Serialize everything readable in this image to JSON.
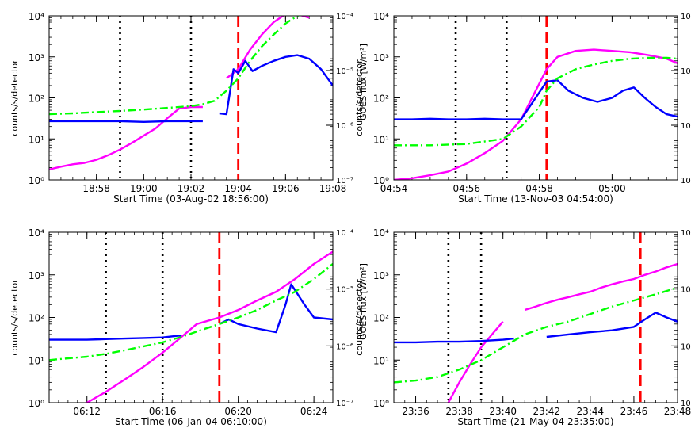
{
  "chart_data": [
    {
      "type": "line",
      "xlabel": "Start Time (03-Aug-02 18:56:00)",
      "ylabel": "counts/s/detector",
      "ylabel_right": "GOES flux [W/m²]",
      "x_ticks": [
        "18:58",
        "19:00",
        "19:02",
        "19:04",
        "19:06",
        "19:08"
      ],
      "xlim_minutes": [
        0,
        12
      ],
      "y_ticks": [
        "10⁰",
        "10¹",
        "10²",
        "10³",
        "10⁴"
      ],
      "y_ticks_right": [
        "10⁻⁷",
        "10⁻⁶",
        "10⁻⁵",
        "10⁻⁴"
      ],
      "ylim": [
        1,
        10000
      ],
      "scale": "log",
      "series": [
        {
          "color": "#ff00ff",
          "style": "solid",
          "x": [
            0,
            0.5,
            1,
            1.5,
            2,
            2.5,
            3,
            3.5,
            4,
            4.5,
            5,
            5.5,
            6,
            6.5,
            7,
            7.5,
            8,
            8.5,
            9,
            9.5,
            10,
            10.5,
            11,
            11.5,
            12
          ],
          "values": [
            1.8,
            2.1,
            2.4,
            2.6,
            3.1,
            4.0,
            5.5,
            8,
            12,
            18,
            32,
            55,
            60,
            60,
            null,
            300,
            500,
            1500,
            3500,
            7000,
            11000,
            11000,
            9000,
            null,
            null
          ]
        },
        {
          "color": "#0000ff",
          "style": "solid",
          "x": [
            0,
            1,
            2,
            3,
            4,
            5,
            6,
            6.5,
            7,
            7.2,
            7.5,
            7.8,
            8,
            8.3,
            8.6,
            9,
            9.5,
            10,
            10.5,
            11,
            11.5,
            12
          ],
          "values": [
            27,
            27,
            27,
            27,
            26,
            27,
            27,
            27,
            null,
            42,
            40,
            500,
            400,
            800,
            450,
            600,
            800,
            1000,
            1100,
            900,
            500,
            200
          ]
        },
        {
          "color": "#00ff00",
          "style": "dash-dot",
          "x": [
            0,
            1,
            2,
            3,
            4,
            5,
            6,
            6.5,
            7,
            7.5,
            8,
            8.5,
            9,
            9.5,
            10,
            10.5,
            11,
            11.5,
            12
          ],
          "values": [
            40,
            42,
            45,
            48,
            52,
            57,
            63,
            70,
            85,
            150,
            300,
            800,
            1800,
            3500,
            6500,
            10000,
            14000,
            18000,
            20000
          ]
        }
      ],
      "vlines": [
        {
          "x": 3,
          "style": "dotted",
          "color": "#000000"
        },
        {
          "x": 6,
          "style": "dotted",
          "color": "#000000"
        },
        {
          "x": 8,
          "style": "dashed",
          "color": "#ff0000"
        }
      ]
    },
    {
      "type": "line",
      "xlabel": "Start Time (13-Nov-03 04:54:00)",
      "ylabel": "counts/s/detector",
      "ylabel_right": "",
      "x_ticks": [
        "04:54",
        "04:56",
        "04:58",
        "05:00"
      ],
      "xlim_minutes": [
        0,
        7.8
      ],
      "y_ticks": [
        "10⁰",
        "10¹",
        "10²",
        "10³",
        "10⁴"
      ],
      "y_ticks_right": [
        "10⁻⁷",
        "10⁻⁶",
        "10⁻⁵",
        "10⁻⁴"
      ],
      "ylim": [
        1,
        10000
      ],
      "scale": "log",
      "series": [
        {
          "color": "#ff00ff",
          "style": "solid",
          "x": [
            0,
            0.5,
            1,
            1.5,
            2,
            2.5,
            3,
            3.5,
            4.2,
            4.5,
            5,
            5.5,
            6,
            6.5,
            7,
            7.5,
            7.8
          ],
          "values": [
            1.0,
            1.1,
            1.3,
            1.6,
            2.5,
            4.5,
            9,
            30,
            500,
            1000,
            1400,
            1500,
            1400,
            1300,
            1100,
            900,
            700
          ]
        },
        {
          "color": "#0000ff",
          "style": "solid",
          "x": [
            0,
            0.5,
            1,
            1.5,
            2,
            2.5,
            3,
            3.5,
            4.2,
            4.5,
            4.8,
            5.2,
            5.6,
            6,
            6.3,
            6.6,
            6.9,
            7.2,
            7.5,
            7.8
          ],
          "values": [
            30,
            30,
            31,
            30,
            30,
            31,
            30,
            30,
            250,
            270,
            150,
            100,
            80,
            100,
            150,
            180,
            100,
            60,
            40,
            35
          ]
        },
        {
          "color": "#00ff00",
          "style": "dash-dot",
          "x": [
            0,
            1,
            2,
            3,
            3.5,
            4,
            4.2,
            4.5,
            5,
            5.5,
            6,
            6.5,
            7,
            7.5,
            7.8
          ],
          "values": [
            7,
            7,
            7.5,
            10,
            20,
            60,
            150,
            300,
            500,
            650,
            800,
            900,
            950,
            950,
            900
          ]
        }
      ],
      "vlines": [
        {
          "x": 1.7,
          "style": "dotted",
          "color": "#000000"
        },
        {
          "x": 3.1,
          "style": "dotted",
          "color": "#000000"
        },
        {
          "x": 4.2,
          "style": "dashed",
          "color": "#ff0000"
        }
      ]
    },
    {
      "type": "line",
      "xlabel": "Start Time (06-Jan-04 06:10:00)",
      "ylabel": "counts/s/detector",
      "ylabel_right": "GOES flux [W/m²]",
      "x_ticks": [
        "06:12",
        "06:16",
        "06:20",
        "06:24"
      ],
      "xlim_minutes": [
        0,
        15
      ],
      "y_ticks": [
        "10⁰",
        "10¹",
        "10²",
        "10³",
        "10⁴"
      ],
      "y_ticks_right": [
        "10⁻⁷",
        "10⁻⁶",
        "10⁻⁵",
        "10⁻⁴"
      ],
      "ylim": [
        1,
        10000
      ],
      "scale": "log",
      "series": [
        {
          "color": "#ff00ff",
          "style": "solid",
          "x": [
            0,
            1,
            2,
            3,
            4,
            5,
            6,
            7,
            7.8,
            9,
            10,
            11,
            12,
            13,
            14,
            15
          ],
          "values": [
            0.5,
            0.7,
            1.0,
            1.8,
            3.5,
            7,
            15,
            35,
            70,
            100,
            150,
            250,
            400,
            800,
            1800,
            3500
          ]
        },
        {
          "color": "#0000ff",
          "style": "solid",
          "x": [
            0,
            1,
            2,
            3,
            4,
            5,
            6,
            7,
            8,
            9,
            9.5,
            10,
            11,
            12,
            12.5,
            12.8,
            13.5,
            14,
            15
          ],
          "values": [
            30,
            30,
            30,
            31,
            32,
            33,
            34,
            38,
            null,
            70,
            90,
            70,
            55,
            45,
            200,
            600,
            200,
            100,
            90
          ]
        },
        {
          "color": "#00ff00",
          "style": "dash-dot",
          "x": [
            0,
            1,
            2,
            3,
            4,
            5,
            6,
            7,
            8,
            9,
            10,
            11,
            12,
            13,
            14,
            15
          ],
          "values": [
            10,
            11,
            12,
            14,
            17,
            21,
            26,
            35,
            50,
            70,
            100,
            150,
            250,
            400,
            800,
            1800
          ]
        }
      ],
      "vlines": [
        {
          "x": 3,
          "style": "dotted",
          "color": "#000000"
        },
        {
          "x": 6,
          "style": "dotted",
          "color": "#000000"
        },
        {
          "x": 9,
          "style": "dashed",
          "color": "#ff0000"
        }
      ]
    },
    {
      "type": "line",
      "xlabel": "Start Time (21-May-04 23:35:00)",
      "ylabel": "counts/s/detector",
      "ylabel_right": "",
      "x_ticks": [
        "23:36",
        "23:38",
        "23:40",
        "23:42",
        "23:44",
        "23:46",
        "23:48"
      ],
      "xlim_minutes": [
        0,
        13
      ],
      "y_ticks": [
        "10⁰",
        "10¹",
        "10²",
        "10³",
        "10⁴"
      ],
      "y_ticks_right": [
        "10⁻⁷",
        "10⁻⁶",
        "10⁻⁵",
        "10⁻⁴"
      ],
      "ylim": [
        1,
        10000
      ],
      "scale": "log",
      "series": [
        {
          "color": "#ff00ff",
          "style": "solid",
          "x": [
            0,
            1,
            2,
            2.5,
            3,
            3.5,
            4,
            4.5,
            5,
            5.5,
            6,
            6.5,
            7,
            7.5,
            8,
            8.5,
            9,
            9.5,
            10,
            10.5,
            11,
            11.5,
            12,
            12.5,
            13
          ],
          "values": [
            0.1,
            0.2,
            0.5,
            1.0,
            3,
            8,
            20,
            40,
            80,
            null,
            150,
            180,
            220,
            260,
            300,
            350,
            400,
            500,
            600,
            700,
            800,
            1000,
            1200,
            1500,
            1800
          ]
        },
        {
          "color": "#0000ff",
          "style": "solid",
          "x": [
            0,
            1,
            2,
            3,
            4,
            5,
            5.5,
            6.5,
            7,
            8,
            9,
            10,
            11,
            11.5,
            12,
            12.5,
            13
          ],
          "values": [
            26,
            26,
            27,
            27,
            28,
            30,
            32,
            null,
            35,
            40,
            45,
            50,
            60,
            90,
            130,
            100,
            80
          ]
        },
        {
          "color": "#00ff00",
          "style": "dash-dot",
          "x": [
            0,
            1,
            2,
            3,
            4,
            5,
            6,
            7,
            8,
            9,
            10,
            11,
            12,
            13
          ],
          "values": [
            3,
            3.3,
            4,
            6,
            10,
            20,
            40,
            60,
            80,
            120,
            180,
            250,
            350,
            500
          ]
        }
      ],
      "vlines": [
        {
          "x": 2.5,
          "style": "dotted",
          "color": "#000000"
        },
        {
          "x": 4,
          "style": "dotted",
          "color": "#000000"
        },
        {
          "x": 11.3,
          "style": "dashed",
          "color": "#ff0000"
        }
      ]
    }
  ]
}
